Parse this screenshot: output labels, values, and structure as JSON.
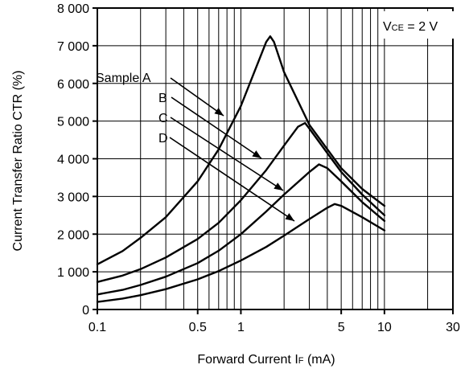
{
  "chart_data": {
    "type": "line",
    "title": "",
    "xlabel": "Forward Current  IF (mA)",
    "xlabel_main": "Forward Current  I",
    "xlabel_sub": "F",
    "xlabel_unit": " (mA)",
    "ylabel": "Current Transfer Ratio  CTR (%)",
    "xscale": "log",
    "xlim": [
      0.1,
      30
    ],
    "ylim": [
      0,
      8000
    ],
    "x_ticks": [
      0.1,
      0.5,
      1,
      5,
      10,
      30
    ],
    "x_tick_labels": [
      "0.1",
      "0.5",
      "1",
      "5",
      "10",
      "30"
    ],
    "y_ticks": [
      0,
      1000,
      2000,
      3000,
      4000,
      5000,
      6000,
      7000,
      8000
    ],
    "y_tick_labels": [
      "0",
      "1 000",
      "2 000",
      "3 000",
      "4 000",
      "5 000",
      "6 000",
      "7 000",
      "8 000"
    ],
    "grid": true,
    "condition": {
      "main": "V",
      "sub": "CE",
      "rest": " = 2 V"
    },
    "series": [
      {
        "name": "Sample A",
        "x": [
          0.1,
          0.15,
          0.2,
          0.3,
          0.5,
          0.7,
          1.0,
          1.3,
          1.5,
          1.6,
          1.7,
          2.0,
          3.0,
          5.0,
          7.0,
          10.0
        ],
        "y": [
          1200,
          1550,
          1900,
          2450,
          3400,
          4250,
          5400,
          6500,
          7100,
          7250,
          7100,
          6300,
          4900,
          3750,
          3200,
          2750
        ]
      },
      {
        "name": "B",
        "x": [
          0.1,
          0.15,
          0.2,
          0.3,
          0.5,
          0.7,
          1.0,
          1.5,
          2.0,
          2.5,
          2.8,
          3.0,
          4.0,
          5.0,
          7.0,
          10.0
        ],
        "y": [
          730,
          900,
          1070,
          1380,
          1870,
          2300,
          2900,
          3700,
          4350,
          4850,
          4950,
          4800,
          4150,
          3650,
          3050,
          2500
        ]
      },
      {
        "name": "C",
        "x": [
          0.1,
          0.15,
          0.2,
          0.3,
          0.5,
          0.7,
          1.0,
          1.5,
          2.0,
          3.0,
          3.5,
          4.0,
          5.0,
          7.0,
          10.0
        ],
        "y": [
          400,
          520,
          650,
          870,
          1230,
          1560,
          2000,
          2600,
          3050,
          3650,
          3850,
          3750,
          3400,
          2850,
          2350
        ]
      },
      {
        "name": "D",
        "x": [
          0.1,
          0.15,
          0.2,
          0.3,
          0.5,
          0.7,
          1.0,
          1.5,
          2.0,
          3.0,
          4.0,
          4.5,
          5.0,
          7.0,
          10.0
        ],
        "y": [
          200,
          290,
          380,
          540,
          800,
          1020,
          1300,
          1660,
          1960,
          2400,
          2700,
          2800,
          2750,
          2450,
          2100
        ]
      }
    ]
  }
}
